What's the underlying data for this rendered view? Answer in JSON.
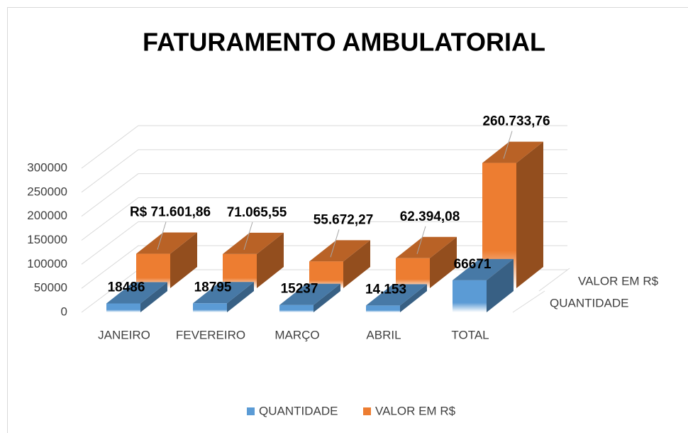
{
  "chart_data": {
    "type": "bar3d",
    "title": "FATURAMENTO AMBULATORIAL",
    "categories": [
      "JANEIRO",
      "FEVEREIRO",
      "MARÇO",
      "ABRIL",
      "TOTAL"
    ],
    "series": [
      {
        "name": "QUANTIDADE",
        "color": "#5b9bd5",
        "values": [
          18486,
          18795,
          15237,
          14153,
          66671
        ],
        "value_labels": [
          "18486",
          "18795",
          "15237",
          "14.153",
          "66671"
        ]
      },
      {
        "name": "VALOR EM R$",
        "color": "#ed7d31",
        "values": [
          71601.86,
          71065.55,
          55672.27,
          62394.08,
          260733.76
        ],
        "value_labels": [
          "R$ 71.601,86",
          "71.065,55",
          "55.672,27",
          "62.394,08",
          "260.733,76"
        ]
      }
    ],
    "ylim": [
      0,
      300000
    ],
    "yticks": [
      0,
      50000,
      100000,
      150000,
      200000,
      250000,
      300000
    ],
    "grid": true,
    "legend": "bottom"
  }
}
